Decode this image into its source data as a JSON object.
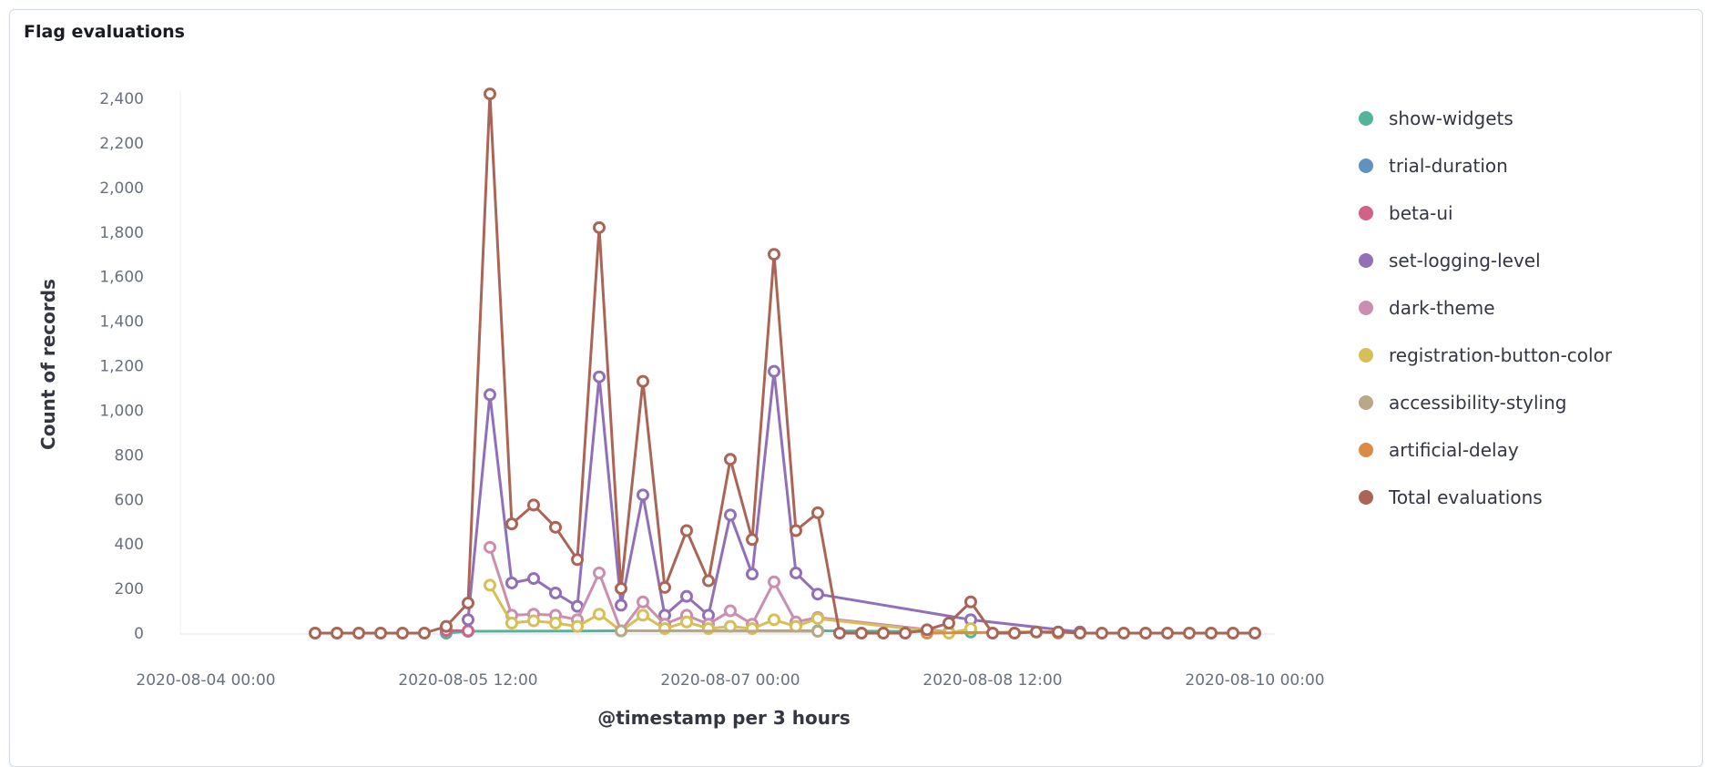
{
  "panel": {
    "title": "Flag evaluations"
  },
  "chart_data": {
    "type": "line",
    "title": "Flag evaluations",
    "xlabel": "@timestamp per 3 hours",
    "ylabel": "Count of records",
    "x_unit": "3-hour bucket index from 2020-08-04 00:00",
    "xlim": [
      0,
      48
    ],
    "ylim": [
      0,
      2450
    ],
    "y_ticks": [
      0,
      200,
      400,
      600,
      800,
      1000,
      1200,
      1400,
      1600,
      1800,
      2000,
      2200,
      2400
    ],
    "y_tick_labels": [
      "0",
      "200",
      "400",
      "600",
      "800",
      "1,000",
      "1,200",
      "1,400",
      "1,600",
      "1,800",
      "2,000",
      "2,200",
      "2,400"
    ],
    "x_ticks": [
      0,
      12,
      24,
      36,
      48
    ],
    "x_tick_labels": [
      "2020-08-04 00:00",
      "2020-08-05 12:00",
      "2020-08-07 00:00",
      "2020-08-08 12:00",
      "2020-08-10 00:00"
    ],
    "legend_position": "right",
    "grid": false,
    "series": [
      {
        "name": "show-widgets",
        "color": "#54b399",
        "points": [
          [
            11,
            0
          ],
          [
            12,
            8
          ],
          [
            19,
            10
          ],
          [
            28,
            10
          ],
          [
            35,
            5
          ]
        ]
      },
      {
        "name": "trial-duration",
        "color": "#6092c0",
        "points": []
      },
      {
        "name": "beta-ui",
        "color": "#d36086",
        "points": [
          [
            11,
            12
          ],
          [
            12,
            10
          ]
        ]
      },
      {
        "name": "set-logging-level",
        "color": "#9170b8",
        "points": [
          [
            12,
            60
          ],
          [
            13,
            1070
          ],
          [
            14,
            225
          ],
          [
            15,
            245
          ],
          [
            16,
            180
          ],
          [
            17,
            120
          ],
          [
            18,
            1150
          ],
          [
            19,
            125
          ],
          [
            20,
            620
          ],
          [
            21,
            80
          ],
          [
            22,
            165
          ],
          [
            23,
            80
          ],
          [
            24,
            530
          ],
          [
            25,
            265
          ],
          [
            26,
            1175
          ],
          [
            27,
            270
          ],
          [
            28,
            175
          ],
          [
            35,
            60
          ],
          [
            40,
            5
          ]
        ]
      },
      {
        "name": "dark-theme",
        "color": "#ca8eae",
        "points": [
          [
            13,
            385
          ],
          [
            14,
            80
          ],
          [
            15,
            85
          ],
          [
            16,
            80
          ],
          [
            17,
            60
          ],
          [
            18,
            270
          ],
          [
            19,
            10
          ],
          [
            20,
            140
          ],
          [
            21,
            40
          ],
          [
            22,
            80
          ],
          [
            23,
            40
          ],
          [
            24,
            100
          ],
          [
            25,
            40
          ],
          [
            26,
            230
          ],
          [
            27,
            50
          ],
          [
            28,
            70
          ],
          [
            34,
            5
          ]
        ]
      },
      {
        "name": "registration-button-color",
        "color": "#d6bf57",
        "points": [
          [
            13,
            215
          ],
          [
            14,
            45
          ],
          [
            15,
            55
          ],
          [
            16,
            45
          ],
          [
            17,
            30
          ],
          [
            18,
            85
          ],
          [
            19,
            10
          ],
          [
            20,
            80
          ],
          [
            21,
            20
          ],
          [
            22,
            50
          ],
          [
            23,
            20
          ],
          [
            24,
            30
          ],
          [
            25,
            20
          ],
          [
            26,
            60
          ],
          [
            27,
            30
          ],
          [
            28,
            65
          ],
          [
            34,
            0
          ],
          [
            35,
            20
          ]
        ]
      },
      {
        "name": "accessibility-styling",
        "color": "#b9a888",
        "points": [
          [
            19,
            10
          ],
          [
            28,
            8
          ]
        ]
      },
      {
        "name": "artificial-delay",
        "color": "#da8b45",
        "points": [
          [
            33,
            0
          ],
          [
            38,
            5
          ],
          [
            39,
            0
          ]
        ]
      },
      {
        "name": "Total evaluations",
        "color": "#aa6556",
        "points": [
          [
            5,
            0
          ],
          [
            6,
            0
          ],
          [
            7,
            0
          ],
          [
            8,
            0
          ],
          [
            9,
            0
          ],
          [
            10,
            0
          ],
          [
            11,
            30
          ],
          [
            12,
            135
          ],
          [
            13,
            2420
          ],
          [
            14,
            490
          ],
          [
            15,
            575
          ],
          [
            16,
            475
          ],
          [
            17,
            330
          ],
          [
            18,
            1820
          ],
          [
            19,
            200
          ],
          [
            20,
            1130
          ],
          [
            21,
            205
          ],
          [
            22,
            460
          ],
          [
            23,
            235
          ],
          [
            24,
            780
          ],
          [
            25,
            420
          ],
          [
            26,
            1700
          ],
          [
            27,
            460
          ],
          [
            28,
            540
          ],
          [
            29,
            0
          ],
          [
            30,
            0
          ],
          [
            31,
            0
          ],
          [
            32,
            0
          ],
          [
            33,
            15
          ],
          [
            34,
            45
          ],
          [
            35,
            140
          ],
          [
            36,
            0
          ],
          [
            37,
            0
          ],
          [
            38,
            5
          ],
          [
            39,
            5
          ],
          [
            40,
            0
          ],
          [
            41,
            0
          ],
          [
            42,
            0
          ],
          [
            43,
            0
          ],
          [
            44,
            0
          ],
          [
            45,
            0
          ],
          [
            46,
            0
          ],
          [
            47,
            0
          ],
          [
            48,
            0
          ]
        ]
      }
    ]
  }
}
